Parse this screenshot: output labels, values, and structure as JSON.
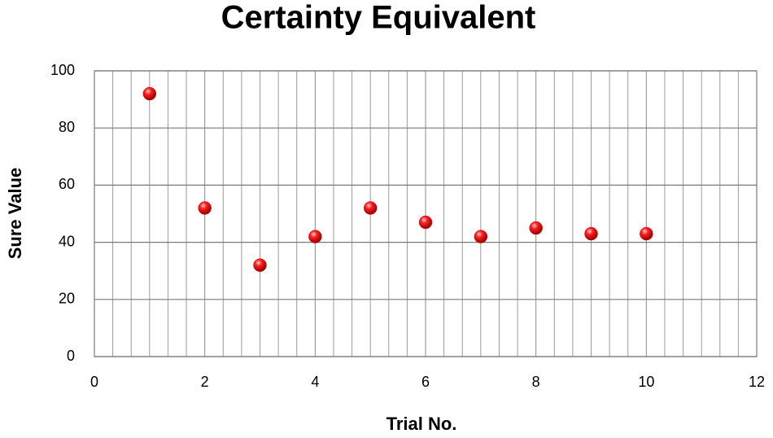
{
  "chart_data": {
    "type": "scatter",
    "title": "Certainty Equivalent",
    "x_label": "Trial No.",
    "y_label": "Sure Value",
    "x": [
      1,
      2,
      3,
      4,
      5,
      6,
      7,
      8,
      9,
      10
    ],
    "values": [
      92,
      52,
      32,
      42,
      52,
      47,
      42,
      45,
      43,
      43
    ],
    "color": "#e00000",
    "xlim": [
      0,
      12
    ],
    "xticks": [
      0,
      2,
      4,
      6,
      8,
      10,
      12
    ],
    "ylim": [
      0,
      100
    ],
    "yticks": [
      0,
      20,
      40,
      60,
      80,
      100
    ],
    "grid": true,
    "x_minor_grid": 6
  }
}
